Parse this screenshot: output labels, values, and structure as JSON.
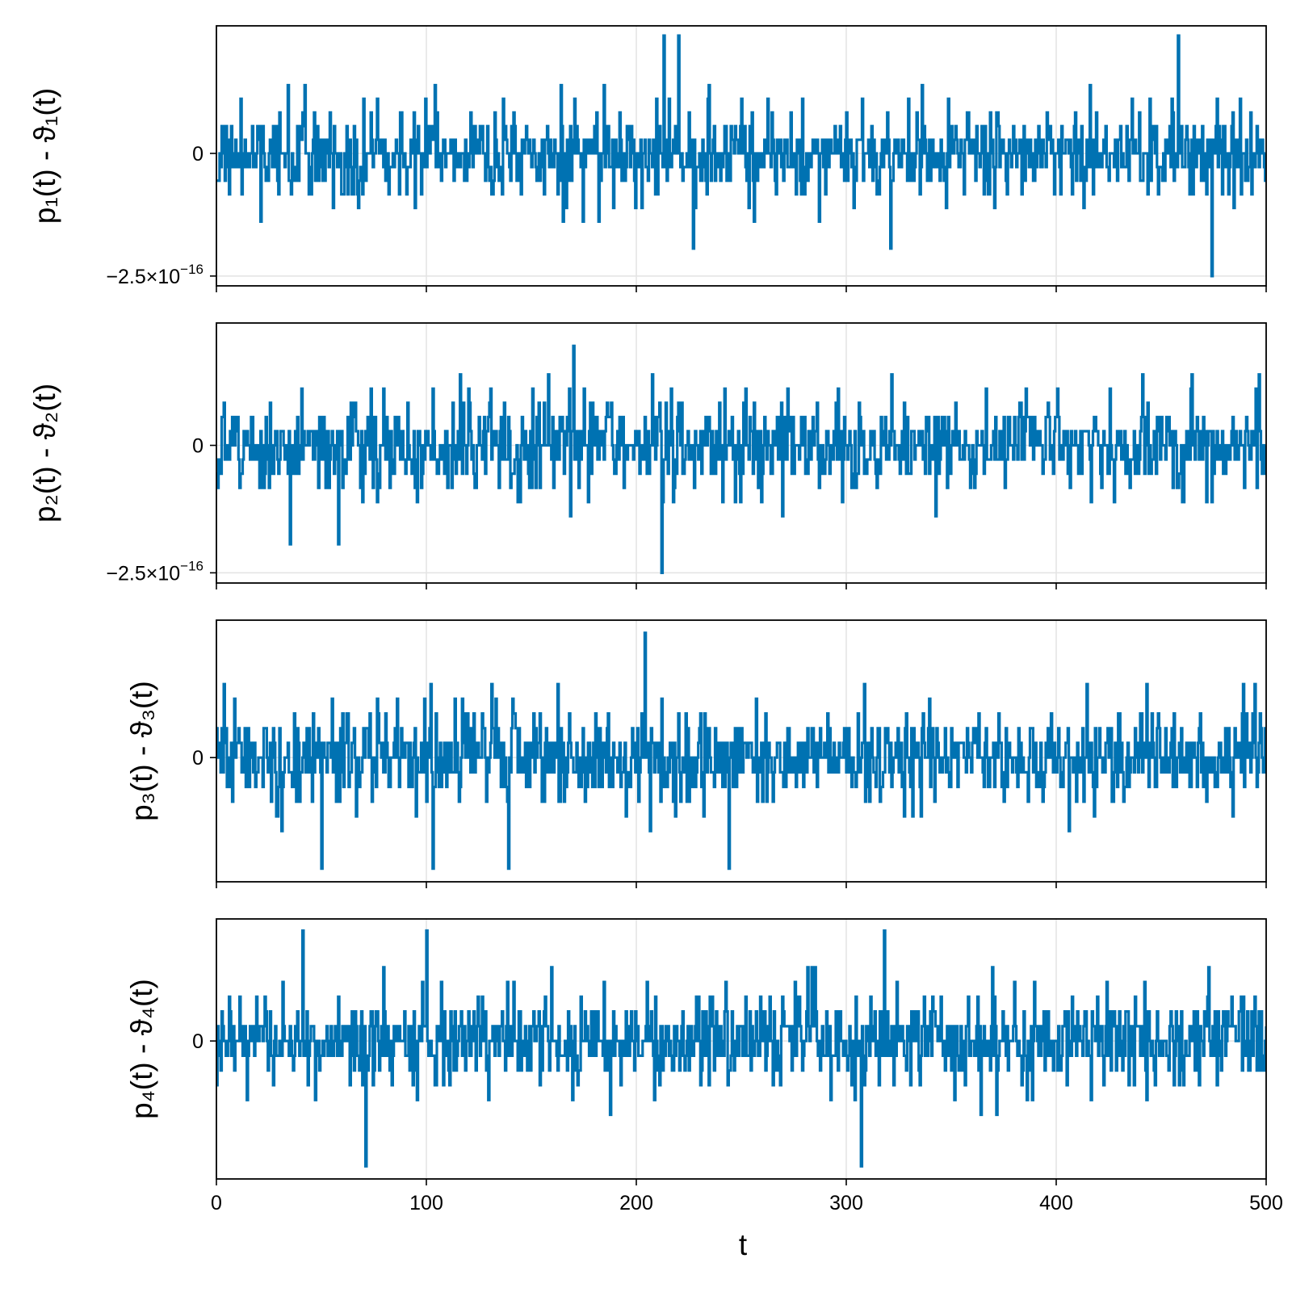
{
  "series_color": "#0072b2",
  "grid_color": "#e3e3e3",
  "x_axis": {
    "label": "t",
    "ticks": [
      0,
      100,
      200,
      300,
      400,
      500
    ],
    "tick_labels": [
      "0",
      "100",
      "200",
      "300",
      "400",
      "500"
    ]
  },
  "chart_data": [
    {
      "type": "line",
      "ylabel": "p₁(t) - ϑ₁(t)",
      "xlim": [
        0,
        500
      ],
      "ylim": [
        -2.7e-16,
        2.6e-16
      ],
      "yticks": [
        0,
        -2.5e-16
      ],
      "ytick_labels": [
        {
          "base": "0",
          "exp": ""
        },
        {
          "base": "−2.5×10",
          "exp": "−16"
        }
      ],
      "grid": true,
      "series": [
        {
          "x": [
            0,
            500
          ],
          "step": 0.5,
          "amplitude_step": 2.78e-17,
          "distribution": "integer multiples of ~2.8e-17, mostly within ±3 steps",
          "min": -2.5e-16,
          "max": 2.4e-16
        }
      ],
      "extremes": [
        [
          213,
          2.4e-16
        ],
        [
          220,
          2.4e-16
        ],
        [
          458,
          2.4e-16
        ],
        [
          227,
          -1.94e-16
        ],
        [
          321,
          -1.94e-16
        ],
        [
          474,
          -2.5e-16
        ]
      ]
    },
    {
      "type": "line",
      "ylabel": "p₂(t) - ϑ₂(t)",
      "xlim": [
        0,
        500
      ],
      "ylim": [
        -2.7e-16,
        2.4e-16
      ],
      "yticks": [
        0,
        -2.5e-16
      ],
      "ytick_labels": [
        {
          "base": "0",
          "exp": ""
        },
        {
          "base": "−2.5×10",
          "exp": "−16"
        }
      ],
      "grid": true,
      "series": [
        {
          "x": [
            0,
            500
          ],
          "step": 0.5,
          "amplitude_step": 2.78e-17,
          "distribution": "integer multiples of ~2.8e-17, mostly within ±3 steps",
          "min": -2.5e-16,
          "max": 1.95e-16
        }
      ],
      "extremes": [
        [
          170,
          1.95e-16
        ],
        [
          212,
          -2.5e-16
        ],
        [
          35,
          -1.94e-16
        ],
        [
          58,
          -1.94e-16
        ]
      ]
    },
    {
      "type": "line",
      "ylabel": "p₃(t) - ϑ₃(t)",
      "xlim": [
        0,
        500
      ],
      "ylim": [
        -2.35e-16,
        2.6e-16
      ],
      "yticks": [
        0
      ],
      "ytick_labels": [
        {
          "base": "0",
          "exp": ""
        }
      ],
      "grid": true,
      "series": [
        {
          "x": [
            0,
            500
          ],
          "step": 0.5,
          "amplitude_step": 2.78e-17,
          "distribution": "integer multiples of ~2.8e-17, mostly within ±3 steps",
          "min": -2.1e-16,
          "max": 2.36e-16
        }
      ],
      "extremes": [
        [
          204,
          2.36e-16
        ],
        [
          50,
          -2.1e-16
        ],
        [
          103,
          -2.1e-16
        ],
        [
          139,
          -2.1e-16
        ],
        [
          244,
          -2.1e-16
        ]
      ]
    },
    {
      "type": "line",
      "ylabel": "p₄(t) - ϑ₄(t)",
      "xlim": [
        0,
        500
      ],
      "ylim": [
        -2.6e-16,
        2.3e-16
      ],
      "yticks": [
        0
      ],
      "ytick_labels": [
        {
          "base": "0",
          "exp": ""
        }
      ],
      "grid": true,
      "series": [
        {
          "x": [
            0,
            500
          ],
          "step": 0.5,
          "amplitude_step": 2.78e-17,
          "distribution": "integer multiples of ~2.8e-17, mostly within ±3 steps",
          "min": -2.36e-16,
          "max": 2.08e-16
        }
      ],
      "extremes": [
        [
          71,
          -2.36e-16
        ],
        [
          307,
          -2.36e-16
        ],
        [
          41,
          2.08e-16
        ],
        [
          100,
          2.08e-16
        ],
        [
          318,
          2.08e-16
        ]
      ]
    }
  ]
}
